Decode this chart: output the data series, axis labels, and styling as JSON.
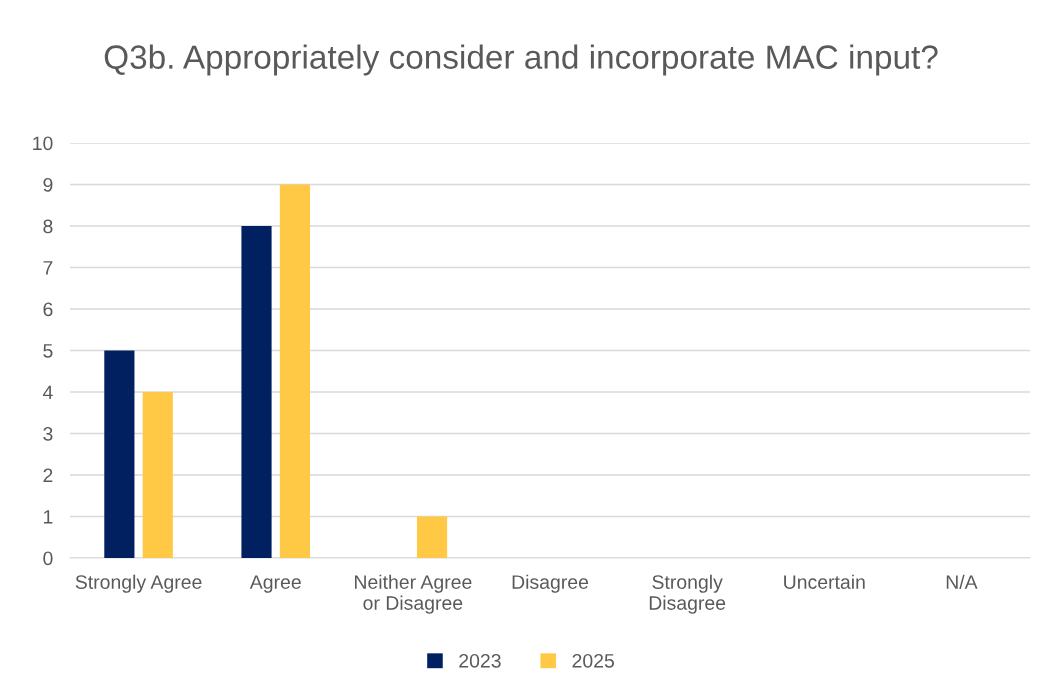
{
  "chart_data": {
    "type": "bar",
    "title": "Q3b. Appropriately consider and incorporate MAC input?",
    "categories": [
      "Strongly Agree",
      "Agree",
      "Neither Agree or Disagree",
      "Disagree",
      "Strongly Disagree",
      "Uncertain",
      "N/A"
    ],
    "series": [
      {
        "name": "2023",
        "color": "#002060",
        "values": [
          5,
          8,
          0,
          0,
          0,
          0,
          0
        ]
      },
      {
        "name": "2025",
        "color": "#ffc845",
        "values": [
          4,
          9,
          1,
          0,
          0,
          0,
          0
        ]
      }
    ],
    "ylim": [
      0,
      10
    ],
    "yticks": [
      0,
      1,
      2,
      3,
      4,
      5,
      6,
      7,
      8,
      9,
      10
    ],
    "grid": "y",
    "legend": "bottom"
  }
}
